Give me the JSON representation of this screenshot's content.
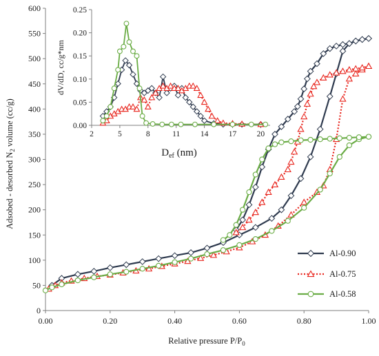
{
  "chart_data": [
    {
      "type": "line",
      "xlabel": "Relative pressure P/P0",
      "ylabel": "Adsobed - desorbed N2 volume (cc/g)",
      "xlim": [
        0,
        1
      ],
      "ylim": [
        0,
        600
      ],
      "x_ticks": [
        "0.00",
        "0.20",
        "0.40",
        "0.60",
        "0.80",
        "1.00"
      ],
      "y_ticks": [
        "0",
        "50",
        "100",
        "150",
        "200",
        "250",
        "300",
        "350",
        "400",
        "450",
        "500",
        "550",
        "600"
      ],
      "grid": false,
      "legend_position": "bottom-right",
      "series": [
        {
          "name": "Al-0.90",
          "color": "#2e3a4e",
          "line": "solid",
          "marker": "diamond",
          "adsorption": [
            [
              0.02,
              50
            ],
            [
              0.05,
              64
            ],
            [
              0.1,
              72
            ],
            [
              0.15,
              78
            ],
            [
              0.2,
              85
            ],
            [
              0.25,
              91
            ],
            [
              0.3,
              97
            ],
            [
              0.35,
              103
            ],
            [
              0.4,
              109
            ],
            [
              0.45,
              115
            ],
            [
              0.5,
              124
            ],
            [
              0.55,
              135
            ],
            [
              0.6,
              150
            ],
            [
              0.65,
              165
            ],
            [
              0.7,
              183
            ],
            [
              0.73,
              200
            ],
            [
              0.76,
              228
            ],
            [
              0.79,
              262
            ],
            [
              0.82,
              305
            ],
            [
              0.85,
              360
            ],
            [
              0.88,
              425
            ],
            [
              0.9,
              470
            ],
            [
              0.92,
              515
            ],
            [
              0.94,
              530
            ],
            [
              0.96,
              535
            ],
            [
              0.98,
              538
            ],
            [
              1.0,
              540
            ]
          ],
          "desorption": [
            [
              1.0,
              540
            ],
            [
              0.98,
              538
            ],
            [
              0.96,
              535
            ],
            [
              0.94,
              530
            ],
            [
              0.92,
              528
            ],
            [
              0.9,
              525
            ],
            [
              0.88,
              520
            ],
            [
              0.86,
              510
            ],
            [
              0.84,
              490
            ],
            [
              0.82,
              475
            ],
            [
              0.81,
              460
            ],
            [
              0.8,
              440
            ],
            [
              0.79,
              420
            ],
            [
              0.78,
              405
            ],
            [
              0.77,
              395
            ],
            [
              0.75,
              380
            ],
            [
              0.73,
              365
            ],
            [
              0.71,
              350
            ],
            [
              0.69,
              320
            ],
            [
              0.67,
              285
            ],
            [
              0.65,
              245
            ],
            [
              0.63,
              210
            ],
            [
              0.61,
              180
            ],
            [
              0.59,
              160
            ]
          ]
        },
        {
          "name": "Al-0.75",
          "color": "#e8241c",
          "line": "dotted",
          "marker": "triangle",
          "adsorption": [
            [
              0.01,
              43
            ],
            [
              0.03,
              50
            ],
            [
              0.05,
              55
            ],
            [
              0.08,
              59
            ],
            [
              0.12,
              64
            ],
            [
              0.16,
              68
            ],
            [
              0.2,
              71
            ],
            [
              0.24,
              75
            ],
            [
              0.28,
              79
            ],
            [
              0.32,
              83
            ],
            [
              0.36,
              88
            ],
            [
              0.4,
              93
            ],
            [
              0.44,
              98
            ],
            [
              0.48,
              104
            ],
            [
              0.52,
              110
            ],
            [
              0.56,
              117
            ],
            [
              0.6,
              125
            ],
            [
              0.64,
              137
            ],
            [
              0.68,
              150
            ],
            [
              0.72,
              168
            ],
            [
              0.76,
              190
            ],
            [
              0.8,
              215
            ],
            [
              0.84,
              235
            ],
            [
              0.86,
              248
            ],
            [
              0.88,
              280
            ],
            [
              0.9,
              340
            ],
            [
              0.92,
              420
            ],
            [
              0.94,
              460
            ],
            [
              0.96,
              470
            ],
            [
              0.98,
              478
            ],
            [
              1.0,
              485
            ]
          ],
          "desorption": [
            [
              1.0,
              485
            ],
            [
              0.98,
              482
            ],
            [
              0.96,
              480
            ],
            [
              0.94,
              478
            ],
            [
              0.92,
              475
            ],
            [
              0.9,
              472
            ],
            [
              0.88,
              468
            ],
            [
              0.86,
              462
            ],
            [
              0.84,
              453
            ],
            [
              0.83,
              445
            ],
            [
              0.82,
              430
            ],
            [
              0.81,
              410
            ],
            [
              0.8,
              385
            ],
            [
              0.79,
              360
            ],
            [
              0.78,
              335
            ],
            [
              0.77,
              315
            ],
            [
              0.76,
              295
            ],
            [
              0.75,
              280
            ],
            [
              0.73,
              265
            ],
            [
              0.71,
              250
            ],
            [
              0.69,
              235
            ],
            [
              0.67,
              215
            ],
            [
              0.65,
              195
            ],
            [
              0.63,
              180
            ],
            [
              0.61,
              165
            ],
            [
              0.59,
              155
            ]
          ]
        },
        {
          "name": "Al-0.58",
          "color": "#6aac45",
          "line": "solid",
          "marker": "circle",
          "adsorption": [
            [
              0.0,
              40
            ],
            [
              0.02,
              46
            ],
            [
              0.05,
              52
            ],
            [
              0.1,
              60
            ],
            [
              0.15,
              66
            ],
            [
              0.2,
              72
            ],
            [
              0.25,
              77
            ],
            [
              0.3,
              83
            ],
            [
              0.35,
              89
            ],
            [
              0.4,
              96
            ],
            [
              0.45,
              103
            ],
            [
              0.5,
              112
            ],
            [
              0.55,
              120
            ],
            [
              0.6,
              130
            ],
            [
              0.65,
              142
            ],
            [
              0.7,
              158
            ],
            [
              0.75,
              178
            ],
            [
              0.8,
              204
            ],
            [
              0.85,
              240
            ],
            [
              0.88,
              272
            ],
            [
              0.91,
              305
            ],
            [
              0.94,
              328
            ],
            [
              0.97,
              340
            ],
            [
              1.0,
              345
            ]
          ],
          "desorption": [
            [
              1.0,
              345
            ],
            [
              0.97,
              344
            ],
            [
              0.94,
              343
            ],
            [
              0.91,
              342
            ],
            [
              0.88,
              341
            ],
            [
              0.85,
              340
            ],
            [
              0.82,
              339
            ],
            [
              0.79,
              338
            ],
            [
              0.76,
              336
            ],
            [
              0.73,
              334
            ],
            [
              0.71,
              330
            ],
            [
              0.69,
              322
            ],
            [
              0.67,
              300
            ],
            [
              0.65,
              270
            ],
            [
              0.63,
              235
            ],
            [
              0.61,
              200
            ],
            [
              0.59,
              170
            ],
            [
              0.57,
              150
            ],
            [
              0.55,
              140
            ]
          ]
        }
      ]
    },
    {
      "type": "line",
      "inset": true,
      "xlabel": "Def (nm)",
      "ylabel": "dV/dD, cc/g*nm",
      "xlim": [
        2,
        21
      ],
      "ylim": [
        0,
        0.25
      ],
      "x_ticks": [
        "2",
        "5",
        "8",
        "11",
        "14",
        "17",
        "20"
      ],
      "y_ticks": [
        "0.00",
        "0.05",
        "0.10",
        "0.15",
        "0.20",
        "0.25"
      ],
      "series": [
        {
          "name": "Al-0.90",
          "color": "#2e3a4e",
          "line": "solid",
          "marker": "diamond",
          "points": [
            [
              3.2,
              0.02
            ],
            [
              3.6,
              0.03
            ],
            [
              4.0,
              0.04
            ],
            [
              4.4,
              0.06
            ],
            [
              4.8,
              0.09
            ],
            [
              5.2,
              0.12
            ],
            [
              5.6,
              0.14
            ],
            [
              6.0,
              0.13
            ],
            [
              6.4,
              0.11
            ],
            [
              6.8,
              0.09
            ],
            [
              7.2,
              0.075
            ],
            [
              7.6,
              0.07
            ],
            [
              8.0,
              0.075
            ],
            [
              8.4,
              0.08
            ],
            [
              8.8,
              0.07
            ],
            [
              9.2,
              0.06
            ],
            [
              9.6,
              0.105
            ],
            [
              10.0,
              0.07
            ],
            [
              10.4,
              0.08
            ],
            [
              10.8,
              0.085
            ],
            [
              11.2,
              0.065
            ],
            [
              11.6,
              0.08
            ],
            [
              12.0,
              0.06
            ],
            [
              12.4,
              0.05
            ],
            [
              12.8,
              0.04
            ],
            [
              13.2,
              0.03
            ],
            [
              13.6,
              0.02
            ],
            [
              14.0,
              0.01
            ],
            [
              15,
              0.004
            ],
            [
              16,
              0.002
            ],
            [
              18,
              0.002
            ],
            [
              20,
              0.002
            ]
          ]
        },
        {
          "name": "Al-0.75",
          "color": "#e8241c",
          "line": "dotted",
          "marker": "triangle",
          "points": [
            [
              3.2,
              0.005
            ],
            [
              3.6,
              0.01
            ],
            [
              4.0,
              0.02
            ],
            [
              4.4,
              0.025
            ],
            [
              4.8,
              0.03
            ],
            [
              5.2,
              0.035
            ],
            [
              5.6,
              0.035
            ],
            [
              6.0,
              0.04
            ],
            [
              6.4,
              0.04
            ],
            [
              6.8,
              0.035
            ],
            [
              7.2,
              0.06
            ],
            [
              7.6,
              0.055
            ],
            [
              8.0,
              0.04
            ],
            [
              8.4,
              0.06
            ],
            [
              8.8,
              0.07
            ],
            [
              9.2,
              0.08
            ],
            [
              9.6,
              0.085
            ],
            [
              10.0,
              0.08
            ],
            [
              10.4,
              0.085
            ],
            [
              10.8,
              0.08
            ],
            [
              11.2,
              0.08
            ],
            [
              11.6,
              0.075
            ],
            [
              12.0,
              0.08
            ],
            [
              12.4,
              0.085
            ],
            [
              12.8,
              0.085
            ],
            [
              13.2,
              0.08
            ],
            [
              13.6,
              0.065
            ],
            [
              14.0,
              0.05
            ],
            [
              14.4,
              0.035
            ],
            [
              14.8,
              0.02
            ],
            [
              15.4,
              0.01
            ],
            [
              16,
              0.005
            ],
            [
              17,
              0.004
            ],
            [
              18,
              0.003
            ],
            [
              20,
              0.002
            ]
          ]
        },
        {
          "name": "Al-0.58",
          "color": "#6aac45",
          "line": "solid",
          "marker": "circle",
          "points": [
            [
              3.2,
              0.01
            ],
            [
              3.6,
              0.02
            ],
            [
              4.0,
              0.04
            ],
            [
              4.4,
              0.08
            ],
            [
              4.8,
              0.12
            ],
            [
              5.0,
              0.16
            ],
            [
              5.4,
              0.17
            ],
            [
              5.7,
              0.22
            ],
            [
              6.0,
              0.18
            ],
            [
              6.4,
              0.16
            ],
            [
              6.8,
              0.15
            ],
            [
              7.1,
              0.08
            ],
            [
              7.4,
              0.02
            ],
            [
              7.8,
              0.005
            ],
            [
              8.5,
              0.003
            ],
            [
              9.5,
              0.002
            ],
            [
              10.5,
              0.002
            ],
            [
              11.5,
              0.002
            ],
            [
              13,
              0.002
            ],
            [
              15,
              0.002
            ],
            [
              17,
              0.002
            ],
            [
              19,
              0.002
            ],
            [
              20.5,
              0.002
            ]
          ]
        }
      ]
    }
  ]
}
